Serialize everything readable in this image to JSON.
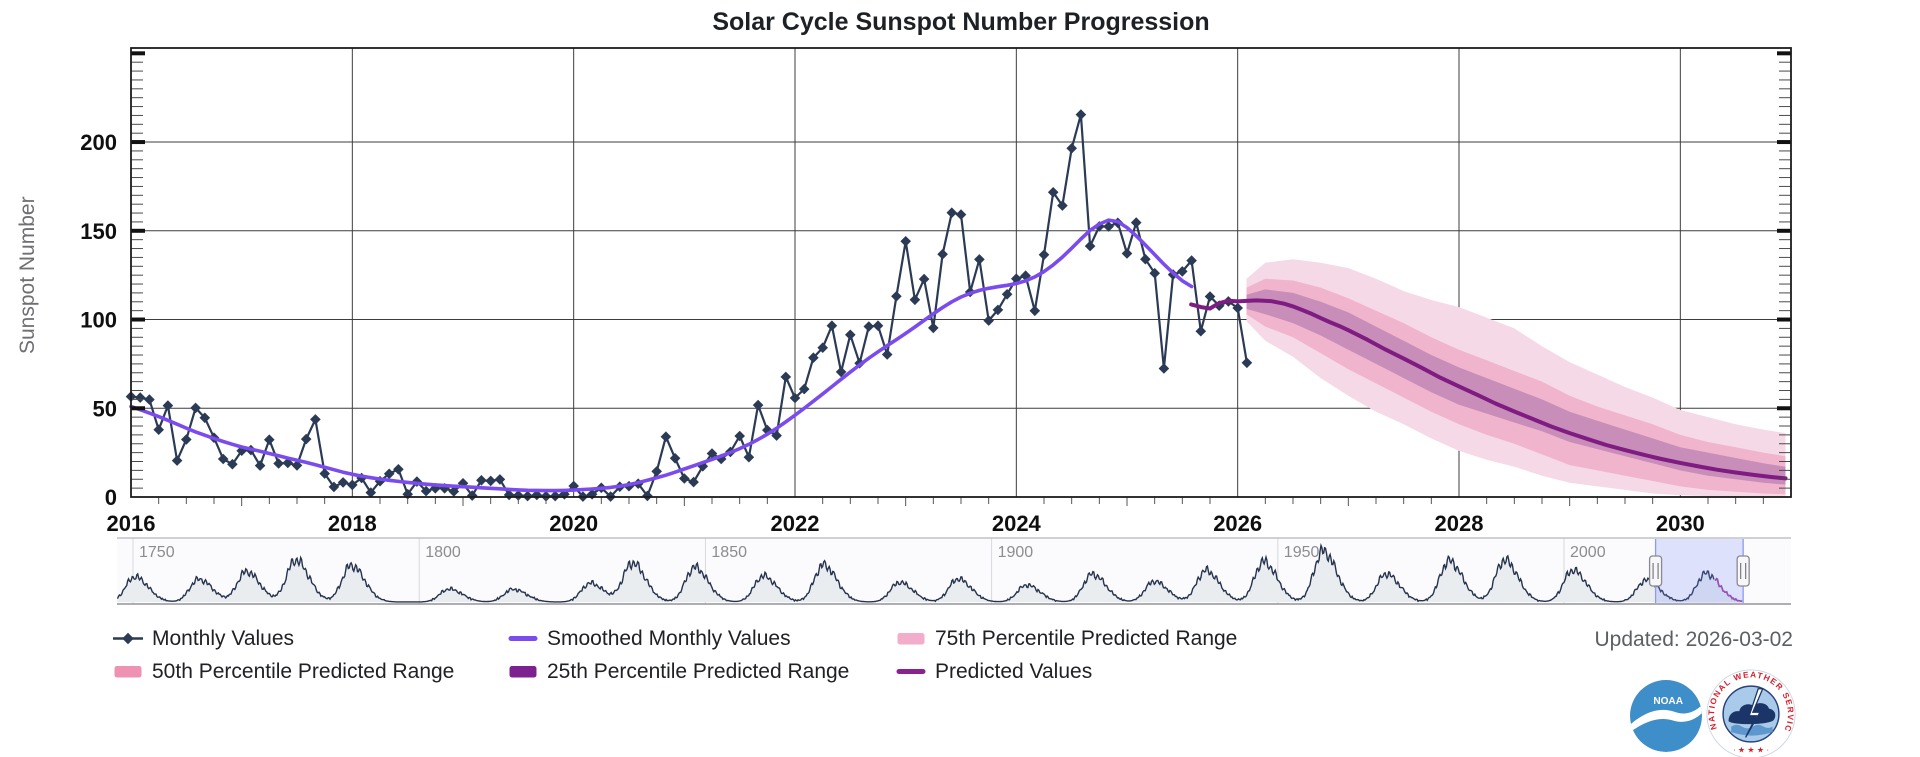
{
  "title": "Solar Cycle Sunspot Number Progression",
  "updated_label": "Updated: 2026-03-02",
  "y_axis": {
    "label": "Sunspot Number",
    "ticks": [
      0,
      50,
      100,
      150,
      200
    ]
  },
  "x_axis": {
    "ticks": [
      2016,
      2018,
      2020,
      2022,
      2024,
      2026,
      2028,
      2030
    ]
  },
  "colors": {
    "monthly": "#2b3a55",
    "smoothed": "#7a4ced",
    "predicted_line": "#7e1c82",
    "band_75": "#f6d9e6",
    "band_50": "#f0b5cc",
    "band_25": "#c98db9",
    "legend_75": "#f2adca",
    "legend_50": "#ee92b1",
    "legend_25": "#7d2090",
    "grid": "#3d3d3d",
    "brush_fill": "rgba(112,132,245,0.22)",
    "brush_edge": "#8b9cf0",
    "nav_line": "#26334e",
    "nav_prediction": "#a343a1"
  },
  "legend": [
    {
      "id": "monthly-values",
      "label": "Monthly Values",
      "marker": "diamond-line",
      "color": "#2b3a55"
    },
    {
      "id": "smoothed-monthly-values",
      "label": "Smoothed Monthly Values",
      "marker": "line",
      "color": "#7a4ced"
    },
    {
      "id": "p75-range",
      "label": "75th Percentile Predicted Range",
      "marker": "swatch",
      "color": "#f2adca"
    },
    {
      "id": "p50-range",
      "label": "50th Percentile Predicted Range",
      "marker": "swatch",
      "color": "#ee92b1"
    },
    {
      "id": "p25-range",
      "label": "25th Percentile Predicted Range",
      "marker": "swatch",
      "color": "#7d2090"
    },
    {
      "id": "predicted-values",
      "label": "Predicted Values",
      "marker": "line",
      "color": "#8a2191"
    }
  ],
  "navigator": {
    "year_labels": [
      1750,
      1800,
      1850,
      1900,
      1950,
      2000
    ],
    "brush": {
      "start_year": 2016.0,
      "end_year": 2031.3
    },
    "cycles": [
      [
        1750.3,
        95
      ],
      [
        1761.5,
        86
      ],
      [
        1769.8,
        115
      ],
      [
        1778.4,
        158
      ],
      [
        1788.1,
        138
      ],
      [
        1805.2,
        49
      ],
      [
        1816.4,
        48
      ],
      [
        1829.9,
        71
      ],
      [
        1837.2,
        147
      ],
      [
        1848.1,
        131
      ],
      [
        1860.1,
        98
      ],
      [
        1870.6,
        140
      ],
      [
        1883.9,
        74
      ],
      [
        1894.1,
        87
      ],
      [
        1906.1,
        64
      ],
      [
        1917.6,
        105
      ],
      [
        1928.4,
        78
      ],
      [
        1937.4,
        119
      ],
      [
        1947.5,
        152
      ],
      [
        1957.9,
        192
      ],
      [
        1968.9,
        106
      ],
      [
        1979.9,
        155
      ],
      [
        1989.6,
        158
      ],
      [
        2001.5,
        120
      ],
      [
        2014.3,
        82
      ],
      [
        2024.8,
        108
      ]
    ]
  },
  "logos": {
    "noaa_text": "NOAA",
    "nws_text": "NATIONAL WEATHER SERVICE"
  },
  "chart_data": {
    "type": "line",
    "title": "Solar Cycle Sunspot Number Progression",
    "xlabel": "",
    "ylabel": "Sunspot Number",
    "xlim": [
      2016,
      2031
    ],
    "ylim": [
      0,
      253
    ],
    "grid": true,
    "legend_position": "bottom",
    "monthly": {
      "name": "Monthly Values",
      "start_year": 2016,
      "interval_months": 1,
      "values": [
        56.6,
        56.0,
        54.9,
        37.9,
        51.5,
        20.5,
        32.4,
        50.2,
        44.6,
        33.4,
        21.4,
        18.5,
        26.1,
        26.4,
        17.7,
        32.3,
        18.9,
        19.2,
        17.8,
        32.6,
        43.7,
        13.2,
        5.7,
        8.2,
        6.8,
        10.7,
        2.5,
        8.9,
        13.1,
        15.6,
        1.6,
        8.7,
        3.3,
        4.9,
        4.9,
        3.1,
        7.7,
        0.8,
        9.4,
        9.1,
        9.9,
        1.2,
        0.9,
        0.5,
        1.1,
        0.4,
        0.5,
        1.5,
        6.2,
        0.2,
        1.5,
        5.2,
        0.2,
        5.8,
        6.1,
        7.5,
        0.6,
        14.4,
        34.0,
        21.8,
        10.4,
        8.4,
        17.3,
        24.5,
        21.4,
        25.4,
        34.4,
        22.4,
        51.8,
        37.7,
        34.6,
        67.7,
        55.8,
        60.8,
        78.5,
        84.1,
        96.5,
        70.5,
        91.4,
        75.4,
        96.1,
        96.5,
        80.3,
        113.1,
        144.1,
        111.1,
        122.8,
        95.3,
        136.8,
        160.2,
        159.1,
        115.5,
        133.9,
        99.4,
        105.4,
        114.2,
        123.0,
        124.7,
        104.9,
        136.5,
        171.7,
        164.2,
        196.5,
        215.5,
        141.4,
        152.5,
        152.4,
        154.5,
        137.2,
        154.6,
        134.0,
        126.1,
        72.4,
        125.3,
        127.1,
        133.2,
        93.4,
        113.0,
        107.8,
        110.2,
        106.5,
        75.6
      ]
    },
    "smoothed": {
      "name": "Smoothed Monthly Values",
      "start_year": 2016,
      "interval_months": 1,
      "values": [
        51.0,
        49.2,
        47.3,
        45.3,
        43.2,
        41.0,
        38.8,
        36.7,
        34.8,
        33.0,
        31.3,
        29.7,
        28.2,
        27.0,
        25.8,
        24.5,
        23.2,
        21.9,
        20.7,
        19.5,
        18.2,
        16.8,
        15.4,
        14.0,
        12.8,
        11.8,
        10.9,
        10.1,
        9.4,
        8.8,
        8.2,
        7.7,
        7.2,
        6.8,
        6.4,
        6.1,
        5.8,
        5.5,
        5.2,
        4.9,
        4.6,
        4.3,
        4.0,
        3.8,
        3.7,
        3.6,
        3.6,
        3.7,
        3.9,
        4.2,
        4.5,
        4.9,
        5.4,
        6.1,
        7.0,
        8.1,
        9.4,
        10.8,
        12.3,
        14.0,
        15.8,
        17.6,
        19.4,
        21.2,
        23.1,
        25.1,
        27.3,
        29.7,
        32.4,
        35.4,
        38.7,
        42.3,
        46.1,
        50.0,
        54.0,
        58.1,
        62.2,
        66.3,
        70.4,
        74.4,
        78.2,
        81.8,
        85.3,
        88.7,
        92.2,
        95.8,
        99.5,
        103.2,
        106.8,
        110.0,
        112.7,
        114.8,
        116.4,
        117.6,
        118.5,
        119.3,
        120.3,
        121.8,
        124.0,
        127.0,
        130.8,
        135.2,
        140.2,
        145.4,
        150.2,
        153.8,
        156.0,
        155.2,
        151.8,
        147.2,
        142.0,
        136.6,
        131.2,
        126.2,
        121.8,
        118.6
      ]
    },
    "prediction": {
      "name": "Predicted Values",
      "line": [
        [
          2025.58,
          108.5
        ],
        [
          2025.67,
          107.0
        ],
        [
          2025.75,
          106.2
        ],
        [
          2025.83,
          109.2
        ],
        [
          2025.92,
          110.6
        ],
        [
          2026.0,
          110.2
        ],
        [
          2026.08,
          110.5
        ],
        [
          2026.17,
          110.8
        ],
        [
          2026.3,
          110.4
        ],
        [
          2026.42,
          108.9
        ],
        [
          2026.5,
          107.4
        ],
        [
          2026.58,
          105.4
        ],
        [
          2026.67,
          103.2
        ],
        [
          2026.75,
          100.8
        ],
        [
          2026.83,
          98.6
        ],
        [
          2026.92,
          96.3
        ],
        [
          2027.0,
          94.0
        ],
        [
          2027.17,
          88.7
        ],
        [
          2027.33,
          83.3
        ],
        [
          2027.5,
          78.0
        ],
        [
          2027.67,
          72.6
        ],
        [
          2027.83,
          67.3
        ],
        [
          2028.0,
          62.3
        ],
        [
          2028.17,
          57.4
        ],
        [
          2028.33,
          52.7
        ],
        [
          2028.5,
          48.2
        ],
        [
          2028.67,
          43.9
        ],
        [
          2028.83,
          39.8
        ],
        [
          2029.0,
          36.0
        ],
        [
          2029.17,
          32.5
        ],
        [
          2029.33,
          29.3
        ],
        [
          2029.5,
          26.4
        ],
        [
          2029.67,
          23.8
        ],
        [
          2029.83,
          21.4
        ],
        [
          2030.0,
          19.2
        ],
        [
          2030.17,
          17.2
        ],
        [
          2030.33,
          15.4
        ],
        [
          2030.5,
          13.8
        ],
        [
          2030.67,
          12.4
        ],
        [
          2030.83,
          11.2
        ],
        [
          2030.95,
          10.5
        ]
      ],
      "bands_format": [
        "year",
        "p75_low",
        "p50_low",
        "p25_low",
        "p25_high",
        "p50_high",
        "p75_high"
      ],
      "bands": [
        [
          2026.08,
          99,
          103,
          106,
          114,
          118,
          123
        ],
        [
          2026.25,
          88,
          96,
          103,
          117,
          123,
          132
        ],
        [
          2026.5,
          79,
          90,
          98,
          115,
          122,
          134
        ],
        [
          2026.75,
          67,
          81,
          91,
          110,
          118,
          132
        ],
        [
          2027.0,
          57,
          72,
          83,
          104,
          112,
          129
        ],
        [
          2027.25,
          48,
          64,
          75,
          96,
          105,
          123
        ],
        [
          2027.5,
          41,
          56,
          67,
          88,
          98,
          116
        ],
        [
          2027.75,
          33,
          48,
          59,
          80,
          90,
          111
        ],
        [
          2028.0,
          26,
          41,
          52,
          73,
          83,
          107
        ],
        [
          2028.25,
          21,
          35,
          47,
          67,
          77,
          101
        ],
        [
          2028.5,
          17,
          30,
          42,
          61,
          71,
          95
        ],
        [
          2028.75,
          12,
          24,
          37,
          55,
          65,
          85
        ],
        [
          2029.0,
          8,
          18,
          31,
          48,
          57,
          76
        ],
        [
          2029.25,
          6,
          15,
          27,
          43,
          51,
          69
        ],
        [
          2029.5,
          4,
          12,
          23,
          38,
          46,
          62
        ],
        [
          2029.75,
          2,
          9,
          19,
          33,
          41,
          56
        ],
        [
          2030.0,
          1,
          6,
          15,
          28,
          35,
          49
        ],
        [
          2030.25,
          0.5,
          4,
          12,
          25,
          31,
          45
        ],
        [
          2030.5,
          0,
          3,
          10,
          22,
          28,
          41
        ],
        [
          2030.75,
          0,
          2,
          8,
          19,
          25,
          38
        ],
        [
          2030.95,
          0,
          1.5,
          7,
          17,
          23,
          36
        ]
      ]
    }
  }
}
